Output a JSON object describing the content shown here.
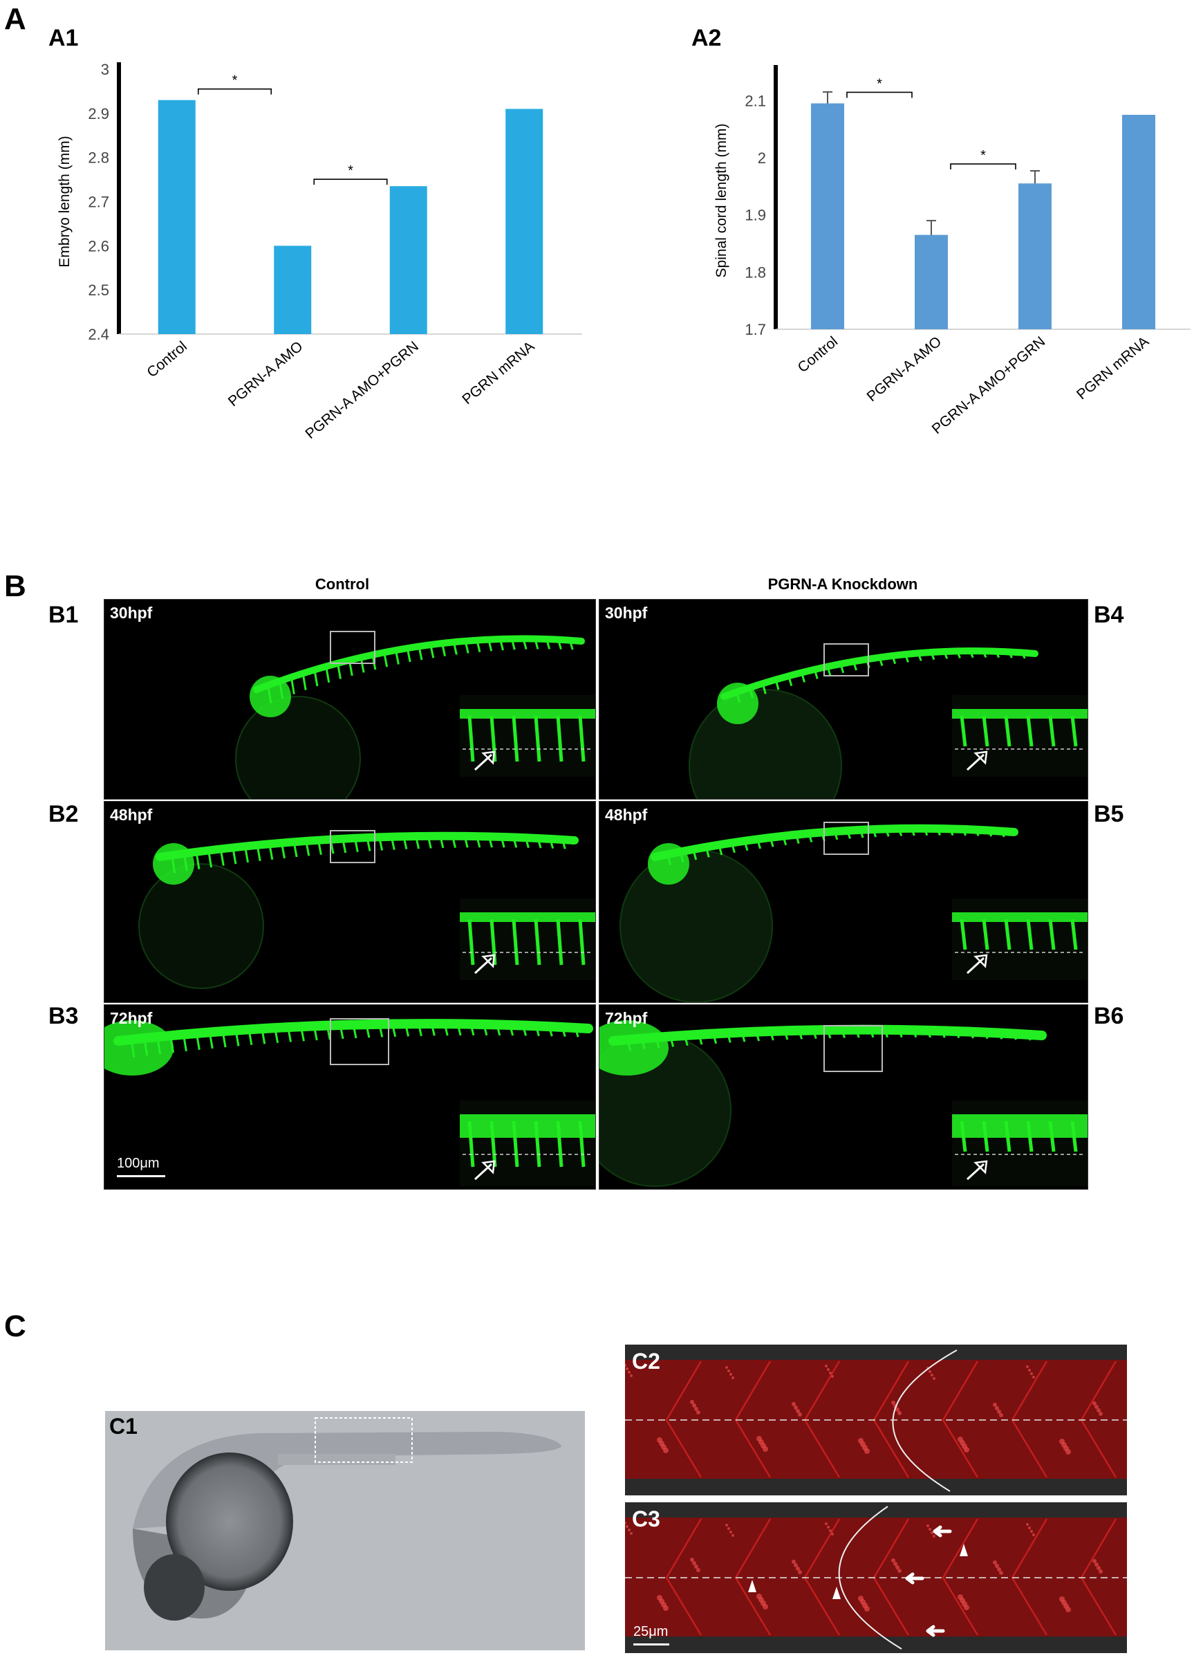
{
  "panels": {
    "A": "A",
    "A1": "A1",
    "A2": "A2",
    "B": "B",
    "B1": "B1",
    "B2": "B2",
    "B3": "B3",
    "B4": "B4",
    "B5": "B5",
    "B6": "B6",
    "C": "C",
    "C1": "C1",
    "C2": "C2",
    "C3": "C3"
  },
  "chart_data": [
    {
      "type": "bar",
      "ylabel": "Embryo length (mm)",
      "categories": [
        "Control",
        "PGRN-A AMO",
        "PGRN-A AMO+PGRN",
        "PGRN mRNA"
      ],
      "values": [
        2.93,
        2.6,
        2.735,
        2.91
      ],
      "ylim": [
        2.4,
        3.0
      ],
      "yticks": [
        "2.4",
        "2.5",
        "2.6",
        "2.7",
        "2.8",
        "2.9",
        "3"
      ],
      "color": "#29abe2",
      "significance": [
        {
          "from": 0,
          "to": 1,
          "label": "*"
        },
        {
          "from": 1,
          "to": 2,
          "label": "*"
        }
      ]
    },
    {
      "type": "bar",
      "ylabel": "Spinal cord length (mm)",
      "categories": [
        "Control",
        "PGRN-A AMO",
        "PGRN-A AMO+PGRN",
        "PGRN mRNA"
      ],
      "values": [
        2.095,
        1.865,
        1.955,
        2.075
      ],
      "errors": [
        0.02,
        0.025,
        0.022,
        0
      ],
      "ylim": [
        1.7,
        2.15
      ],
      "yticks": [
        "1.7",
        "1.8",
        "1.9",
        "2",
        "2.1"
      ],
      "color": "#5b9bd5",
      "significance": [
        {
          "from": 0,
          "to": 1,
          "label": "*"
        },
        {
          "from": 1,
          "to": 2,
          "label": "*"
        }
      ]
    }
  ],
  "panelB": {
    "columns": [
      "Control",
      "PGRN-A Knockdown"
    ],
    "timepoints": [
      "30hpf",
      "48hpf",
      "72hpf"
    ],
    "scalebar": "100μm",
    "colors": {
      "fluorescence": "#22ee22",
      "background": "#000000"
    }
  },
  "panelC": {
    "scalebar": "25μm",
    "colors": {
      "red_stain": "#d42020",
      "brightfield": "#b9bdc1"
    }
  }
}
